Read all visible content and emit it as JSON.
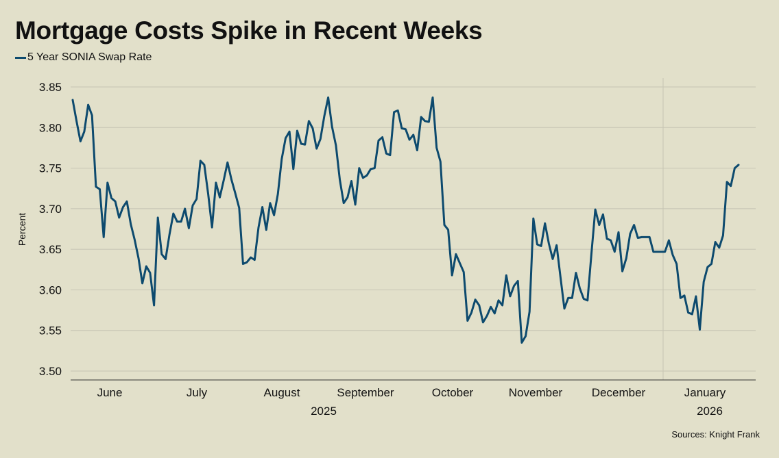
{
  "chart_data": {
    "type": "line",
    "title": "Mortgage Costs Spike in Recent Weeks",
    "ylabel": "Percent",
    "xlabel": "",
    "ylim": [
      3.5,
      3.85
    ],
    "yticks": [
      "3.50",
      "3.55",
      "3.60",
      "3.65",
      "3.70",
      "3.75",
      "3.80",
      "3.85"
    ],
    "grid": "horizontal",
    "legend_position": "top-left",
    "x_month_labels": [
      "June",
      "July",
      "August",
      "September",
      "October",
      "November",
      "December",
      "January"
    ],
    "x_year_labels": [
      "2025",
      "2026"
    ],
    "series": [
      {
        "name": "5 Year SONIA Swap Rate",
        "color": "#0d4a6e",
        "values": [
          3.834,
          3.808,
          3.783,
          3.795,
          3.828,
          3.815,
          3.727,
          3.724,
          3.665,
          3.732,
          3.713,
          3.709,
          3.689,
          3.702,
          3.709,
          3.681,
          3.662,
          3.639,
          3.608,
          3.629,
          3.621,
          3.581,
          3.689,
          3.644,
          3.638,
          3.668,
          3.694,
          3.684,
          3.684,
          3.7,
          3.676,
          3.704,
          3.712,
          3.759,
          3.754,
          3.718,
          3.677,
          3.732,
          3.714,
          3.735,
          3.757,
          3.736,
          3.719,
          3.701,
          3.632,
          3.634,
          3.64,
          3.637,
          3.677,
          3.702,
          3.674,
          3.707,
          3.692,
          3.718,
          3.761,
          3.787,
          3.795,
          3.749,
          3.796,
          3.78,
          3.779,
          3.808,
          3.799,
          3.774,
          3.786,
          3.814,
          3.837,
          3.801,
          3.778,
          3.736,
          3.707,
          3.714,
          3.734,
          3.705,
          3.75,
          3.738,
          3.741,
          3.749,
          3.75,
          3.784,
          3.788,
          3.768,
          3.766,
          3.819,
          3.821,
          3.799,
          3.798,
          3.785,
          3.791,
          3.772,
          3.813,
          3.808,
          3.807,
          3.837,
          3.775,
          3.758,
          3.68,
          3.674,
          3.618,
          3.644,
          3.633,
          3.622,
          3.562,
          3.572,
          3.588,
          3.581,
          3.56,
          3.568,
          3.579,
          3.571,
          3.587,
          3.581,
          3.618,
          3.592,
          3.605,
          3.611,
          3.535,
          3.543,
          3.573,
          3.688,
          3.656,
          3.654,
          3.682,
          3.657,
          3.638,
          3.655,
          3.616,
          3.577,
          3.59,
          3.59,
          3.621,
          3.602,
          3.589,
          3.587,
          3.645,
          3.699,
          3.68,
          3.693,
          3.663,
          3.661,
          3.647,
          3.671,
          3.623,
          3.639,
          3.669,
          3.68,
          3.664,
          3.665,
          3.665,
          3.665,
          3.647,
          3.647,
          3.647,
          3.647,
          3.661,
          3.643,
          3.632,
          3.59,
          3.593,
          3.572,
          3.57,
          3.592,
          3.551,
          3.61,
          3.628,
          3.632,
          3.659,
          3.652,
          3.667,
          3.733,
          3.728,
          3.75,
          3.754
        ]
      }
    ]
  },
  "source": "Sources: Knight Frank"
}
